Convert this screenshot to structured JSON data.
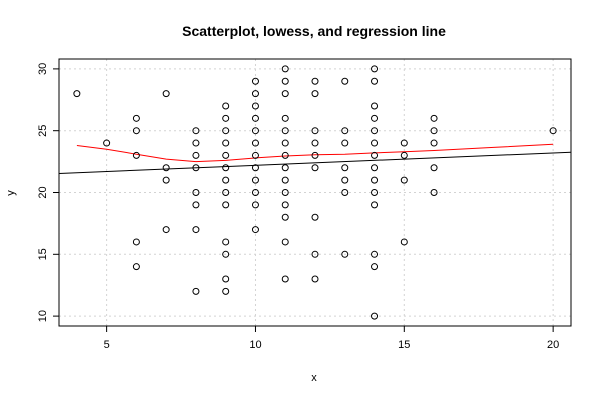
{
  "chart_data": {
    "type": "scatter",
    "title": "Scatterplot, lowess, and regression line",
    "xlabel": "x",
    "ylabel": "y",
    "xlim": [
      3.4,
      20.6
    ],
    "ylim": [
      9.2,
      30.8
    ],
    "xticks": [
      5,
      10,
      15,
      20
    ],
    "yticks": [
      10,
      15,
      20,
      25,
      30
    ],
    "grid": true,
    "points": [
      [
        4,
        28
      ],
      [
        5,
        24
      ],
      [
        6,
        26
      ],
      [
        6,
        25
      ],
      [
        6,
        23
      ],
      [
        6,
        16
      ],
      [
        6,
        14
      ],
      [
        7,
        28
      ],
      [
        7,
        22
      ],
      [
        7,
        21
      ],
      [
        7,
        17
      ],
      [
        8,
        25
      ],
      [
        8,
        24
      ],
      [
        8,
        23
      ],
      [
        8,
        22
      ],
      [
        8,
        20
      ],
      [
        8,
        19
      ],
      [
        8,
        17
      ],
      [
        8,
        12
      ],
      [
        9,
        27
      ],
      [
        9,
        26
      ],
      [
        9,
        25
      ],
      [
        9,
        24
      ],
      [
        9,
        23
      ],
      [
        9,
        22
      ],
      [
        9,
        21
      ],
      [
        9,
        20
      ],
      [
        9,
        19
      ],
      [
        9,
        16
      ],
      [
        9,
        15
      ],
      [
        9,
        13
      ],
      [
        9,
        12
      ],
      [
        10,
        29
      ],
      [
        10,
        28
      ],
      [
        10,
        27
      ],
      [
        10,
        26
      ],
      [
        10,
        25
      ],
      [
        10,
        24
      ],
      [
        10,
        23
      ],
      [
        10,
        22
      ],
      [
        10,
        21
      ],
      [
        10,
        20
      ],
      [
        10,
        19
      ],
      [
        10,
        17
      ],
      [
        11,
        30
      ],
      [
        11,
        29
      ],
      [
        11,
        28
      ],
      [
        11,
        26
      ],
      [
        11,
        25
      ],
      [
        11,
        24
      ],
      [
        11,
        23
      ],
      [
        11,
        22
      ],
      [
        11,
        21
      ],
      [
        11,
        20
      ],
      [
        11,
        19
      ],
      [
        11,
        18
      ],
      [
        11,
        16
      ],
      [
        11,
        13
      ],
      [
        12,
        29
      ],
      [
        12,
        28
      ],
      [
        12,
        25
      ],
      [
        12,
        24
      ],
      [
        12,
        23
      ],
      [
        12,
        22
      ],
      [
        12,
        18
      ],
      [
        12,
        15
      ],
      [
        12,
        13
      ],
      [
        13,
        29
      ],
      [
        13,
        25
      ],
      [
        13,
        24
      ],
      [
        13,
        22
      ],
      [
        13,
        21
      ],
      [
        13,
        20
      ],
      [
        13,
        15
      ],
      [
        14,
        30
      ],
      [
        14,
        29
      ],
      [
        14,
        27
      ],
      [
        14,
        26
      ],
      [
        14,
        25
      ],
      [
        14,
        24
      ],
      [
        14,
        23
      ],
      [
        14,
        22
      ],
      [
        14,
        21
      ],
      [
        14,
        20
      ],
      [
        14,
        19
      ],
      [
        14,
        15
      ],
      [
        14,
        14
      ],
      [
        14,
        10
      ],
      [
        15,
        24
      ],
      [
        15,
        23
      ],
      [
        15,
        21
      ],
      [
        15,
        16
      ],
      [
        16,
        26
      ],
      [
        16,
        25
      ],
      [
        16,
        24
      ],
      [
        16,
        22
      ],
      [
        16,
        20
      ],
      [
        20,
        25
      ]
    ],
    "series": [
      {
        "type": "lowess",
        "color": "#ff0000",
        "points": [
          [
            4,
            23.8
          ],
          [
            5,
            23.5
          ],
          [
            6,
            23.1
          ],
          [
            7,
            22.7
          ],
          [
            8,
            22.5
          ],
          [
            9,
            22.6
          ],
          [
            10,
            22.8
          ],
          [
            11,
            22.95
          ],
          [
            12,
            23.05
          ],
          [
            13,
            23.1
          ],
          [
            14,
            23.2
          ],
          [
            15,
            23.3
          ],
          [
            16,
            23.4
          ],
          [
            18,
            23.65
          ],
          [
            20,
            23.9
          ]
        ]
      },
      {
        "type": "regression",
        "color": "#000000",
        "intercept": 21.2,
        "slope": 0.1
      }
    ]
  }
}
